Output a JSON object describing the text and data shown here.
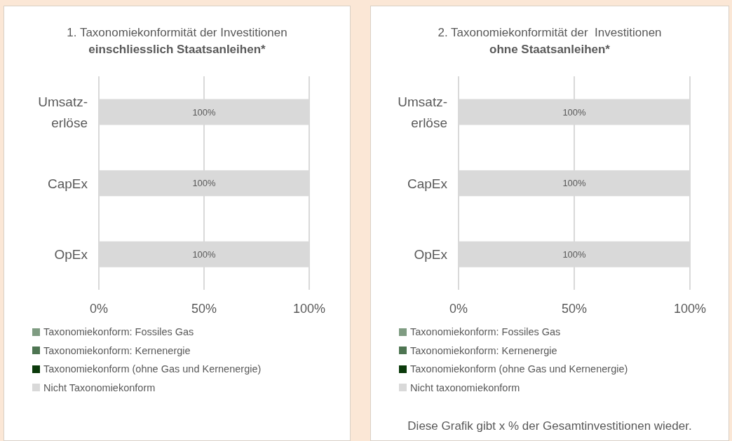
{
  "chart_data": [
    {
      "type": "bar",
      "orientation": "horizontal",
      "stacked": true,
      "title": "1. Taxonomiekonformität der Investitionen",
      "subtitle": "einschliesslich Staatsanleihen*",
      "categories": [
        "Umsatz-erlöse",
        "CapEx",
        "OpEx"
      ],
      "series": [
        {
          "name": "Taxonomiekonform: Fossiles Gas",
          "color": "#7f9c82",
          "values": [
            0,
            0,
            0
          ]
        },
        {
          "name": "Taxonomiekonform: Kernenergie",
          "color": "#4e7552",
          "values": [
            0,
            0,
            0
          ]
        },
        {
          "name": "Taxonomiekonform (ohne Gas und Kernenergie)",
          "color": "#0b3a0b",
          "values": [
            0,
            0,
            0
          ]
        },
        {
          "name": "Nicht Taxonomiekonform",
          "color": "#d9d9d9",
          "values": [
            100,
            100,
            100
          ],
          "value_labels": [
            "100%",
            "100%",
            "100%"
          ]
        }
      ],
      "xlim": [
        0,
        100
      ],
      "xticks": [
        {
          "value": 0,
          "label": "0%"
        },
        {
          "value": 50,
          "label": "50%"
        },
        {
          "value": 100,
          "label": "100%"
        }
      ],
      "grid": "x",
      "legend": "bottom"
    },
    {
      "type": "bar",
      "orientation": "horizontal",
      "stacked": true,
      "title": "2. Taxonomiekonformität der  Investitionen",
      "subtitle": "ohne Staatsanleihen*",
      "categories": [
        "Umsatz-erlöse",
        "CapEx",
        "OpEx"
      ],
      "series": [
        {
          "name": "Taxonomiekonform: Fossiles Gas",
          "color": "#7f9c82",
          "values": [
            0,
            0,
            0
          ]
        },
        {
          "name": "Taxonomiekonform: Kernenergie",
          "color": "#4e7552",
          "values": [
            0,
            0,
            0
          ]
        },
        {
          "name": "Taxonomiekonform (ohne Gas und Kernenergie)",
          "color": "#0b3a0b",
          "values": [
            0,
            0,
            0
          ]
        },
        {
          "name": "Nicht taxonomiekonform",
          "color": "#d9d9d9",
          "values": [
            100,
            100,
            100
          ],
          "value_labels": [
            "100%",
            "100%",
            "100%"
          ]
        }
      ],
      "xlim": [
        0,
        100
      ],
      "xticks": [
        {
          "value": 0,
          "label": "0%"
        },
        {
          "value": 50,
          "label": "50%"
        },
        {
          "value": 100,
          "label": "100%"
        }
      ],
      "grid": "x",
      "legend": "bottom",
      "annotations": [
        "Diese Grafik gibt x % der Gesamtinvestitionen wieder."
      ]
    }
  ]
}
